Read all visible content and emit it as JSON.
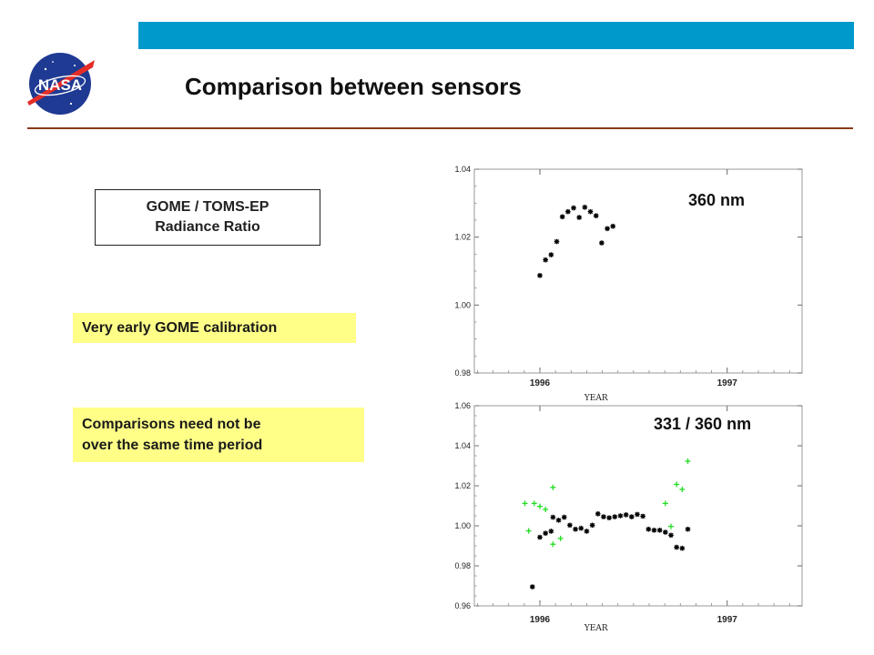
{
  "header": {
    "title": "Comparison between sensors",
    "logo_text": "NASA",
    "bar_color": "#0099cc",
    "rule_color": "#8b3a1a"
  },
  "ratio_box": {
    "line1": "GOME / TOMS-EP",
    "line2": "Radiance Ratio"
  },
  "notes": {
    "note1": {
      "text": "Very early GOME calibration",
      "bg": "#ffff88"
    },
    "note2": {
      "line1": "Comparisons need not be",
      "line2": "over the same time period",
      "bg": "#ffff88"
    }
  },
  "chart_data": [
    {
      "type": "scatter",
      "label": "360 nm",
      "xlabel": "YEAR",
      "x_ticks": [
        "1996",
        "1997"
      ],
      "xlim": [
        1995.65,
        1997.4
      ],
      "ylim": [
        0.98,
        1.04
      ],
      "y_ticks": [
        "0.98",
        "1.00",
        "1.02",
        "1.04"
      ],
      "series": [
        {
          "marker": "asterisk",
          "color": "#000000",
          "points": [
            [
              1996.0,
              1.0087
            ],
            [
              1996.03,
              1.0133
            ],
            [
              1996.06,
              1.0148
            ],
            [
              1996.09,
              1.0187
            ],
            [
              1996.12,
              1.026
            ],
            [
              1996.15,
              1.0275
            ],
            [
              1996.18,
              1.0286
            ],
            [
              1996.21,
              1.0258
            ],
            [
              1996.24,
              1.0288
            ],
            [
              1996.27,
              1.0275
            ],
            [
              1996.3,
              1.0263
            ],
            [
              1996.33,
              1.0183
            ],
            [
              1996.36,
              1.0225
            ],
            [
              1996.39,
              1.0232
            ]
          ]
        }
      ]
    },
    {
      "type": "scatter",
      "label": "331 / 360 nm",
      "xlabel": "YEAR",
      "x_ticks": [
        "1996",
        "1997"
      ],
      "xlim": [
        1995.65,
        1997.4
      ],
      "ylim": [
        0.96,
        1.06
      ],
      "y_ticks": [
        "0.96",
        "0.98",
        "1.00",
        "1.02",
        "1.04",
        "1.06"
      ],
      "series": [
        {
          "marker": "asterisk",
          "color": "#000000",
          "points": [
            [
              1995.96,
              0.9695
            ],
            [
              1996.0,
              0.9943
            ],
            [
              1996.03,
              0.9963
            ],
            [
              1996.06,
              0.9973
            ],
            [
              1996.07,
              1.0043
            ],
            [
              1996.1,
              1.0028
            ],
            [
              1996.13,
              1.0043
            ],
            [
              1996.16,
              1.0003
            ],
            [
              1996.19,
              0.9983
            ],
            [
              1996.22,
              0.9988
            ],
            [
              1996.25,
              0.9973
            ],
            [
              1996.28,
              1.0003
            ],
            [
              1996.31,
              1.006
            ],
            [
              1996.34,
              1.0045
            ],
            [
              1996.37,
              1.004
            ],
            [
              1996.4,
              1.0045
            ],
            [
              1996.43,
              1.005
            ],
            [
              1996.46,
              1.0055
            ],
            [
              1996.49,
              1.0045
            ],
            [
              1996.52,
              1.0057
            ],
            [
              1996.55,
              1.0048
            ],
            [
              1996.58,
              0.9983
            ],
            [
              1996.61,
              0.9978
            ],
            [
              1996.64,
              0.9978
            ],
            [
              1996.67,
              0.9968
            ],
            [
              1996.7,
              0.9953
            ],
            [
              1996.73,
              0.9893
            ],
            [
              1996.76,
              0.9888
            ],
            [
              1996.79,
              0.9983
            ]
          ]
        },
        {
          "marker": "plus",
          "color": "#22dd22",
          "points": [
            [
              1995.92,
              1.0112
            ],
            [
              1995.94,
              0.9975
            ],
            [
              1995.97,
              1.0112
            ],
            [
              1996.0,
              1.0097
            ],
            [
              1996.03,
              1.0082
            ],
            [
              1996.07,
              1.0192
            ],
            [
              1996.07,
              0.9908
            ],
            [
              1996.11,
              0.9937
            ],
            [
              1996.67,
              1.0112
            ],
            [
              1996.7,
              0.9997
            ],
            [
              1996.73,
              1.0207
            ],
            [
              1996.76,
              1.0182
            ],
            [
              1996.79,
              1.0323
            ]
          ]
        }
      ]
    }
  ]
}
